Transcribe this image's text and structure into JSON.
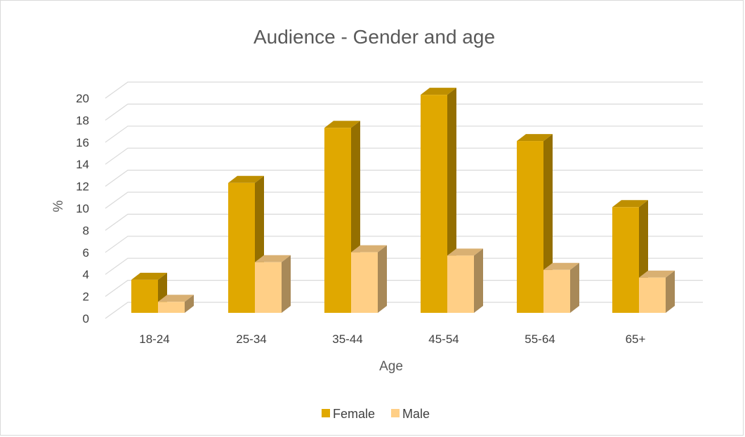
{
  "chart_data": {
    "type": "bar",
    "variant": "3d-clustered-column",
    "title": "Audience - Gender and age",
    "xlabel": "Age",
    "ylabel": "%",
    "categories": [
      "18-24",
      "25-34",
      "35-44",
      "45-54",
      "55-64",
      "65+"
    ],
    "series": [
      {
        "name": "Female",
        "values": [
          3,
          11.8,
          16.8,
          19.8,
          15.6,
          9.6
        ],
        "color": "#e0a800"
      },
      {
        "name": "Male",
        "values": [
          1,
          4.6,
          5.5,
          5.2,
          3.9,
          3.2
        ],
        "color": "#ffcf86"
      }
    ],
    "ylim": [
      0,
      20
    ],
    "yticks": [
      0,
      2,
      4,
      6,
      8,
      10,
      12,
      14,
      16,
      18,
      20
    ],
    "grid": true,
    "legend_position": "bottom"
  }
}
